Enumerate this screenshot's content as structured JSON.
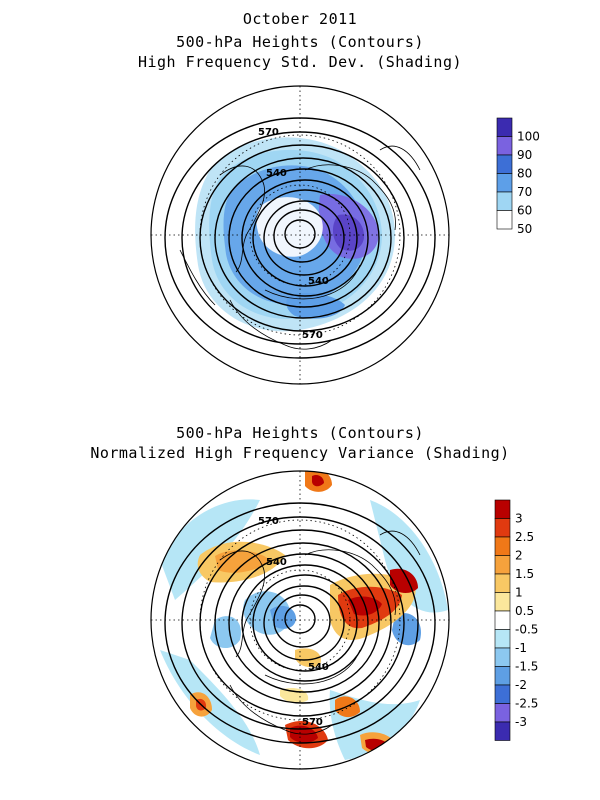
{
  "figure": {
    "date_title": "October 2011",
    "top_panel": {
      "title_line1": "500-hPa Heights (Contours)",
      "title_line2": "High Frequency Std. Dev. (Shading)",
      "colorbar": {
        "labels": [
          "100",
          "90",
          "80",
          "70",
          "60",
          "50"
        ],
        "colors": [
          "#3b2bb0",
          "#7a62e0",
          "#3d6fd6",
          "#5d9fe8",
          "#9fd6f3",
          "#ffffff"
        ]
      },
      "contour_labels": [
        "570",
        "540",
        "540",
        "570"
      ]
    },
    "bottom_panel": {
      "title_line1": "500-hPa Heights (Contours)",
      "title_line2": "Normalized High Frequency Variance (Shading)",
      "colorbar": {
        "labels": [
          "3",
          "2.5",
          "2",
          "1.5",
          "1",
          "0.5",
          "-0.5",
          "-1",
          "-1.5",
          "-2",
          "-2.5",
          "-3"
        ],
        "colors": [
          "#b80000",
          "#e03a10",
          "#f07818",
          "#f6a23c",
          "#f8c864",
          "#fbe79c",
          "#ffffff",
          "#b6e6f6",
          "#8cc8f0",
          "#5e9fe4",
          "#3d6fd6",
          "#7a62e0",
          "#3b2bb0"
        ]
      },
      "contour_labels": [
        "570",
        "540",
        "540",
        "570"
      ]
    }
  }
}
